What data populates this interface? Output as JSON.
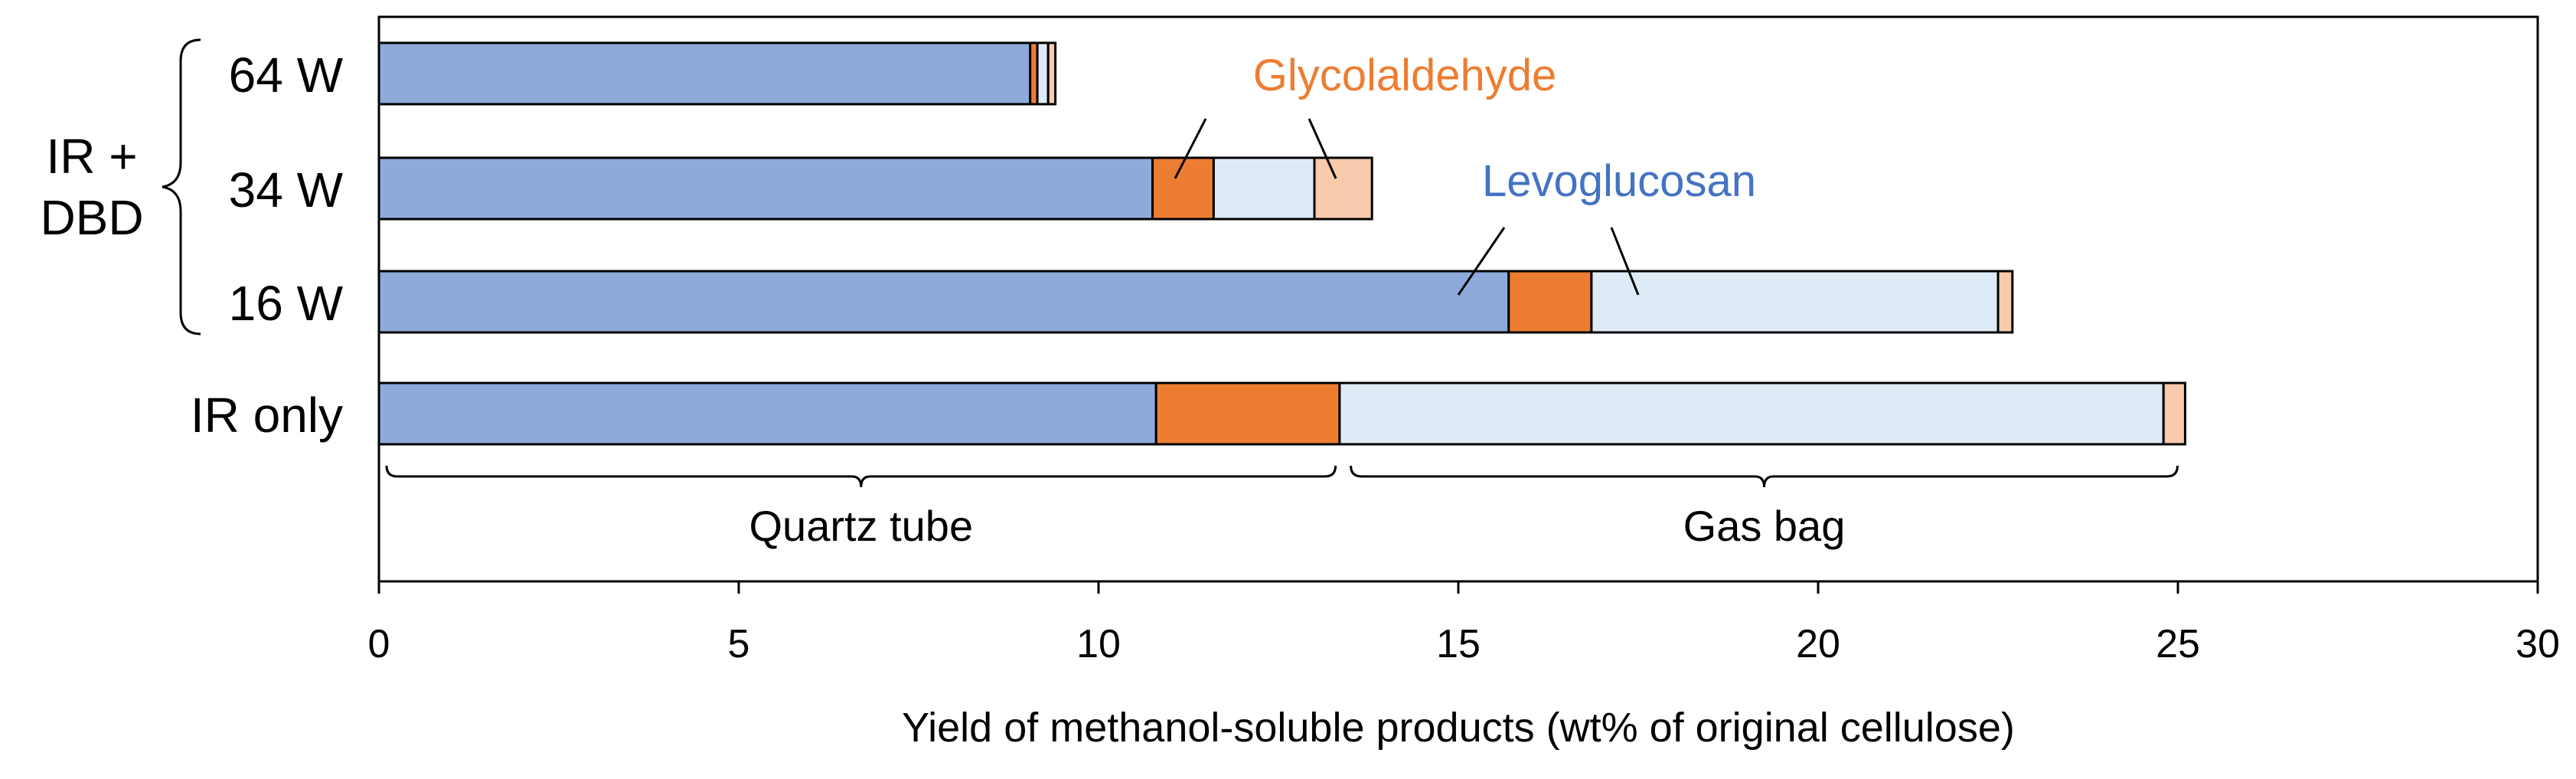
{
  "chart_data": {
    "type": "bar",
    "orientation": "horizontal",
    "stacked": true,
    "xlabel": "Yield of methanol-soluble products (wt% of original cellulose)",
    "xlim": [
      0,
      30
    ],
    "xticks": [
      0,
      5,
      10,
      15,
      20,
      25,
      30
    ],
    "grid": false,
    "categories": [
      "64 W",
      "34 W",
      "16 W",
      "IR only"
    ],
    "group_label": "IR +\nDBD",
    "series": [
      {
        "name": "Levoglucosan (Quartz tube)",
        "color": "#8eaadb",
        "values": [
          9.05,
          10.75,
          15.7,
          10.8
        ]
      },
      {
        "name": "Glycolaldehyde (Quartz tube)",
        "color": "#ed7d31",
        "values": [
          0.1,
          0.85,
          1.15,
          2.55
        ]
      },
      {
        "name": "Levoglucosan (Gas bag)",
        "color": "#deebf7",
        "values": [
          0.15,
          1.4,
          5.65,
          11.45
        ]
      },
      {
        "name": "Glycolaldehyde (Gas bag)",
        "color": "#f8cbad",
        "values": [
          0.1,
          0.8,
          0.2,
          0.3
        ]
      }
    ],
    "annotations": [
      {
        "text": "Glycolaldehyde",
        "color": "#ed7d31"
      },
      {
        "text": "Levoglucosan",
        "color": "#4472c4"
      },
      {
        "text": "Quartz tube",
        "range": [
          0,
          13.4
        ]
      },
      {
        "text": "Gas bag",
        "range": [
          13.4,
          25.1
        ]
      }
    ]
  }
}
